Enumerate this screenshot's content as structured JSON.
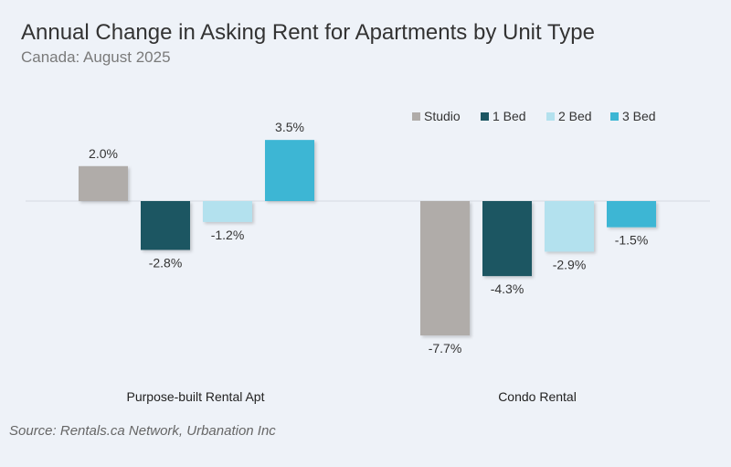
{
  "chart_data": {
    "type": "bar",
    "title": "Annual Change in Asking Rent for Apartments by Unit Type",
    "subtitle": "Canada: August 2025",
    "categories": [
      "Purpose-built Rental Apt",
      "Condo Rental"
    ],
    "series": [
      {
        "name": "Studio",
        "color": "#b0aca9",
        "values": [
          2.0,
          -7.7
        ],
        "labels": [
          "2.0%",
          "-7.7%"
        ]
      },
      {
        "name": "1 Bed",
        "color": "#1d5662",
        "values": [
          -2.8,
          -4.3
        ],
        "labels": [
          "-2.8%",
          "-4.3%"
        ]
      },
      {
        "name": "2 Bed",
        "color": "#b3e1ee",
        "values": [
          -1.2,
          -2.9
        ],
        "labels": [
          "-1.2%",
          "-2.9%"
        ]
      },
      {
        "name": "3 Bed",
        "color": "#3db6d4",
        "values": [
          3.5,
          -1.5
        ],
        "labels": [
          "3.5%",
          "-1.5%"
        ]
      }
    ],
    "ylim": [
      -7.7,
      3.5
    ],
    "grid": false,
    "legend": "top-right",
    "source": "Source: Rentals.ca Network, Urbanation Inc"
  }
}
